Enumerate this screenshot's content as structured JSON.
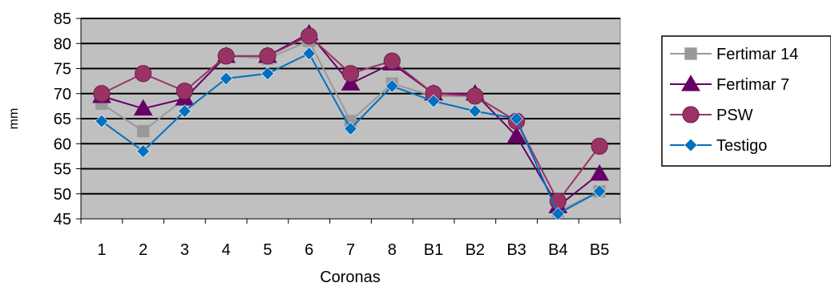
{
  "chart_data": {
    "type": "line",
    "title": "",
    "xlabel": "Coronas",
    "ylabel": "mm",
    "categories": [
      "1",
      "2",
      "3",
      "4",
      "5",
      "6",
      "7",
      "8",
      "B1",
      "B2",
      "B3",
      "B4",
      "B5"
    ],
    "ylim": [
      45,
      85
    ],
    "yticks": [
      45,
      50,
      55,
      60,
      65,
      70,
      75,
      80,
      85
    ],
    "grid": true,
    "plot_background": "#c0c0c0",
    "legend_position": "right",
    "series": [
      {
        "name": "Fertimar 14",
        "color": "#999999",
        "marker": "square",
        "values": [
          68,
          62.5,
          69,
          77.5,
          77,
          80.5,
          64.5,
          72,
          69.5,
          69.5,
          64.5,
          46.5,
          50.5
        ]
      },
      {
        "name": "Fertimar 7",
        "color": "#660066",
        "marker": "triangle",
        "values": [
          69.5,
          67,
          69,
          77.5,
          77.5,
          82,
          72,
          76,
          70,
          70,
          61.5,
          47.5,
          54
        ]
      },
      {
        "name": "PSW",
        "color": "#993366",
        "marker": "circle",
        "values": [
          70,
          74,
          70.5,
          77.5,
          77.5,
          81.5,
          74,
          76.5,
          70,
          69.5,
          64.5,
          48.5,
          59.5
        ]
      },
      {
        "name": "Testigo",
        "color": "#0070c0",
        "marker": "diamond",
        "values": [
          64.5,
          58.5,
          66.5,
          73,
          74,
          78,
          63,
          71.5,
          68.5,
          66.5,
          65,
          46,
          50.5
        ]
      }
    ]
  }
}
